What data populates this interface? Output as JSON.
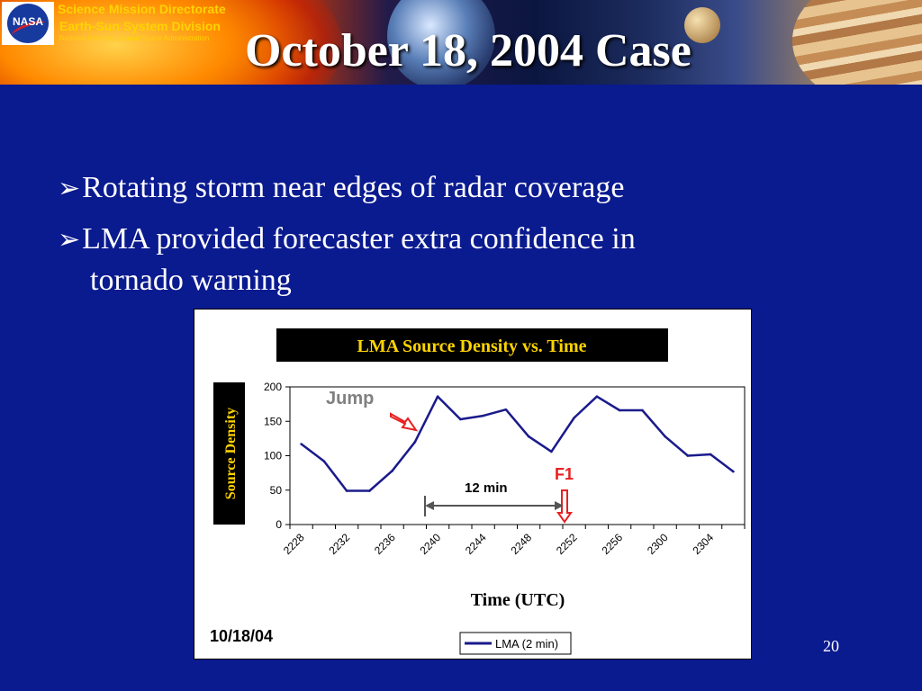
{
  "header": {
    "org_line1": "Science Mission Directorate",
    "org_line2": "Earth-Sun System Division",
    "org_line3": "National Aeronautics and Space Administration",
    "logo_text": "NASA",
    "title": "October 18, 2004 Case"
  },
  "bullets": [
    "Rotating storm near edges of radar coverage",
    "LMA provided forecaster extra confidence in",
    "tornado warning"
  ],
  "bullet_icon": "arrow-bullet-icon",
  "chart_data": {
    "type": "line",
    "title": "LMA Source Density vs. Time",
    "xlabel": "Time (UTC)",
    "ylabel": "Source Density",
    "ylim": [
      0,
      200
    ],
    "yticks": [
      0,
      50,
      100,
      150,
      200
    ],
    "xtick_labels": [
      "2228",
      "2232",
      "2236",
      "2240",
      "2244",
      "2248",
      "2252",
      "2256",
      "2300",
      "2304"
    ],
    "grid": false,
    "legend_position": "bottom",
    "series": [
      {
        "name": "LMA (2 min)",
        "color": "#1a1a8c",
        "x": [
          "2228",
          "2230",
          "2232",
          "2234",
          "2236",
          "2238",
          "2240",
          "2242",
          "2244",
          "2246",
          "2248",
          "2250",
          "2252",
          "2254",
          "2256",
          "2258",
          "2300",
          "2302",
          "2304",
          "2306"
        ],
        "values": [
          117,
          92,
          49,
          49,
          78,
          120,
          186,
          153,
          158,
          167,
          128,
          106,
          155,
          186,
          166,
          166,
          128,
          100,
          102,
          77
        ]
      }
    ],
    "annotations": {
      "jump": "Jump",
      "f1": "F1",
      "interval": "12 min",
      "date": "10/18/04"
    },
    "annotation_colors": {
      "jump": "#808080",
      "f1": "#e82020",
      "arrow": "#e82020"
    }
  },
  "page_number": "20"
}
